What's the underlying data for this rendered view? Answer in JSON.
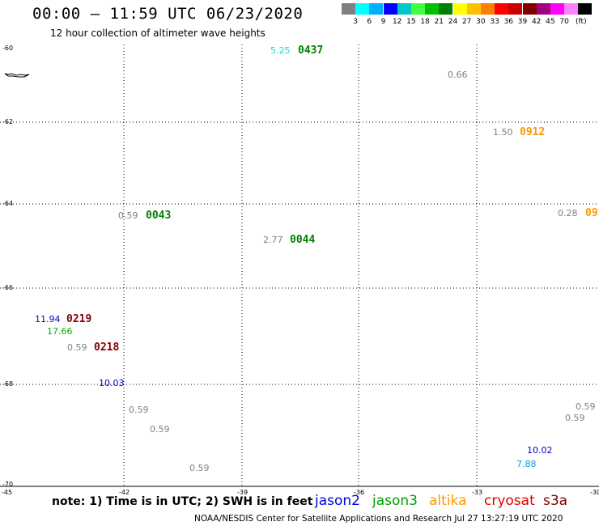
{
  "header": {
    "title": "00:00 – 11:59 UTC 06/23/2020",
    "subtitle": "12 hour collection of altimeter wave heights"
  },
  "legend": {
    "unit": "(ft)",
    "colors": [
      "#808080",
      "#00ffff",
      "#00b0ff",
      "#0000ff",
      "#00c8c8",
      "#40ff40",
      "#00c000",
      "#008000",
      "#ffff00",
      "#ffc000",
      "#ff8000",
      "#ff0000",
      "#c80000",
      "#800000",
      "#a00080",
      "#ff00ff",
      "#ff80ff",
      "#000000"
    ],
    "ticks": [
      "3",
      "6",
      "9",
      "12",
      "15",
      "18",
      "21",
      "24",
      "27",
      "30",
      "33",
      "36",
      "39",
      "42",
      "45",
      "70"
    ]
  },
  "axes": {
    "lat_labels": [
      "-60",
      "-62",
      "-64",
      "-66",
      "-68",
      "-70"
    ],
    "lon_labels": [
      "-45",
      "-42",
      "-39",
      "-36",
      "-33",
      "-30"
    ]
  },
  "observations": [
    {
      "swh": "5.25",
      "swh_color": "#00e0e0",
      "time": "0437",
      "time_color": "#008000"
    },
    {
      "swh": "0.66",
      "swh_color": "#808080",
      "time": "",
      "time_color": ""
    },
    {
      "swh": "1.50",
      "swh_color": "#808080",
      "time": "0912",
      "time_color": "#ff9900"
    },
    {
      "swh": "0.59",
      "swh_color": "#808080",
      "time": "0043",
      "time_color": "#008000"
    },
    {
      "swh": "0.28",
      "swh_color": "#808080",
      "time": "09",
      "time_color": "#ff9900"
    },
    {
      "swh": "2.77",
      "swh_color": "#808080",
      "time": "0044",
      "time_color": "#008000"
    },
    {
      "swh": "11.94",
      "swh_color": "#0000c0",
      "time": "0219",
      "time_color": "#800000"
    },
    {
      "swh": "17.66",
      "swh_color": "#00b000",
      "time": "",
      "time_color": ""
    },
    {
      "swh": "0.59",
      "swh_color": "#808080",
      "time": "0218",
      "time_color": "#800000"
    },
    {
      "swh": "10.03",
      "swh_color": "#0000c0",
      "time": "",
      "time_color": ""
    },
    {
      "swh": "0.59",
      "swh_color": "#808080",
      "time": "",
      "time_color": ""
    },
    {
      "swh": "0.59",
      "swh_color": "#808080",
      "time": "",
      "time_color": ""
    },
    {
      "swh": "0.59",
      "swh_color": "#808080",
      "time": "",
      "time_color": ""
    },
    {
      "swh": "0.59",
      "swh_color": "#808080",
      "time": "",
      "time_color": ""
    },
    {
      "swh": "0.59",
      "swh_color": "#808080",
      "time": "",
      "time_color": ""
    },
    {
      "swh": "10.02",
      "swh_color": "#0000c0",
      "time": "",
      "time_color": ""
    },
    {
      "swh": "7.88",
      "swh_color": "#00a0e0",
      "time": "",
      "time_color": ""
    }
  ],
  "footer": {
    "note": "note: 1) Time is in UTC; 2) SWH is in feet",
    "missions": [
      {
        "name": "jason2",
        "color": "#0000e0"
      },
      {
        "name": "jason3",
        "color": "#00a000"
      },
      {
        "name": "altika",
        "color": "#ff9900"
      },
      {
        "name": "cryosat",
        "color": "#e00000"
      },
      {
        "name": "s3a",
        "color": "#800000"
      }
    ],
    "credit": "NOAA/NESDIS Center for Satellite Applications and Research    Jul 27 13:27:19 UTC 2020"
  }
}
